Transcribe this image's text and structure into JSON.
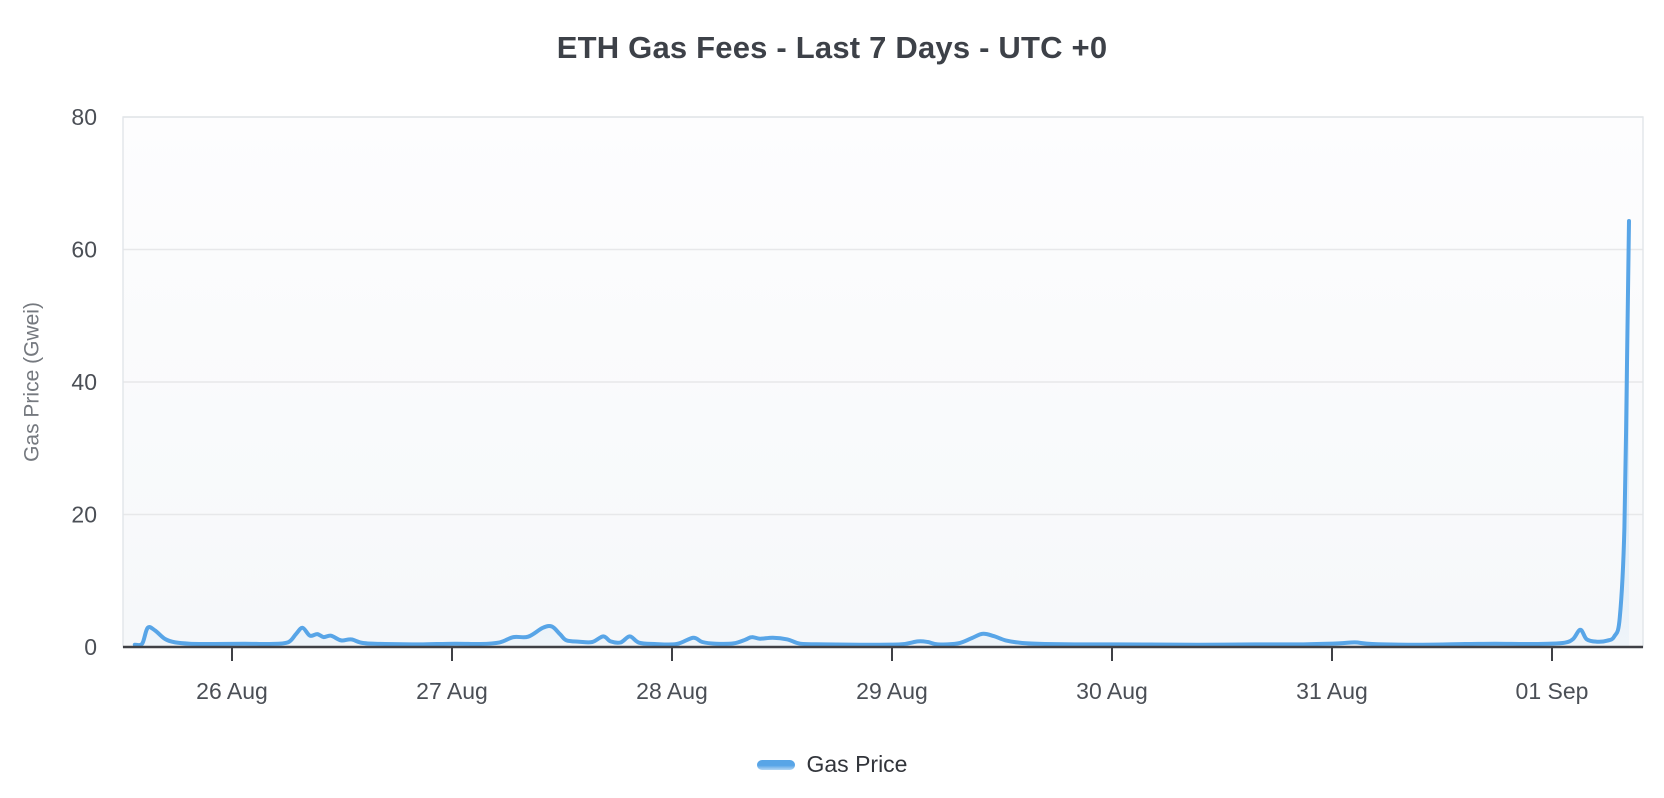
{
  "header": {
    "title": "ETH Gas Fees - Last 7 Days - UTC +0"
  },
  "legend": {
    "items": [
      {
        "label": "Gas Price",
        "color": "#58a5e7"
      }
    ]
  },
  "colors": {
    "line": "#58a5e7",
    "area_top": "rgba(88,165,231,0.18)",
    "area_mid": "rgba(88,165,231,0.10)",
    "area_bottom": "rgba(140,190,235,0.07)",
    "grid": "#e7e8ea",
    "plot_border": "#e2e5e9",
    "axis_line": "#3f4045",
    "tick_label": "#4b4f56",
    "y_axis_title": "#75797f",
    "plot_bg_top": "#fdfdfe",
    "plot_bg_bottom": "#f6f8fa"
  },
  "chart_data": {
    "type": "line",
    "title": "ETH Gas Fees - Last 7 Days - UTC +0",
    "xlabel": "",
    "ylabel": "Gas Price (Gwei)",
    "x_unit": "hours since 26 Aug 00:00 (UTC+0)",
    "ylim": [
      0,
      80
    ],
    "yticks": [
      0,
      20,
      40,
      60,
      80
    ],
    "grid": "horizontal",
    "legend_position": "bottom",
    "xticks": [
      {
        "label": "26 Aug",
        "offset_hours": 0
      },
      {
        "label": "27 Aug",
        "offset_hours": 24
      },
      {
        "label": "28 Aug",
        "offset_hours": 48
      },
      {
        "label": "29 Aug",
        "offset_hours": 72
      },
      {
        "label": "30 Aug",
        "offset_hours": 96
      },
      {
        "label": "31 Aug",
        "offset_hours": 120
      },
      {
        "label": "01 Sep",
        "offset_hours": 144
      }
    ],
    "series": [
      {
        "name": "Gas Price",
        "color": "#58a5e7",
        "points": [
          [
            -10.6,
            0.35
          ],
          [
            -9.8,
            0.5
          ],
          [
            -9.2,
            2.9
          ],
          [
            -8.4,
            2.5
          ],
          [
            -7.3,
            1.2
          ],
          [
            -6.2,
            0.7
          ],
          [
            -4.6,
            0.5
          ],
          [
            -1.9,
            0.45
          ],
          [
            1.4,
            0.5
          ],
          [
            4.1,
            0.45
          ],
          [
            6.1,
            0.7
          ],
          [
            7.0,
            2.0
          ],
          [
            7.7,
            2.9
          ],
          [
            8.5,
            1.7
          ],
          [
            9.3,
            1.95
          ],
          [
            10.0,
            1.5
          ],
          [
            10.8,
            1.7
          ],
          [
            11.9,
            1.0
          ],
          [
            13.0,
            1.15
          ],
          [
            14.3,
            0.6
          ],
          [
            16.7,
            0.45
          ],
          [
            20.5,
            0.4
          ],
          [
            24.3,
            0.5
          ],
          [
            27.1,
            0.45
          ],
          [
            29.2,
            0.7
          ],
          [
            30.7,
            1.5
          ],
          [
            32.3,
            1.55
          ],
          [
            33.9,
            2.9
          ],
          [
            34.9,
            3.1
          ],
          [
            35.8,
            1.9
          ],
          [
            36.5,
            1.0
          ],
          [
            37.9,
            0.8
          ],
          [
            39.3,
            0.75
          ],
          [
            40.5,
            1.6
          ],
          [
            41.3,
            0.85
          ],
          [
            42.4,
            0.7
          ],
          [
            43.4,
            1.6
          ],
          [
            44.4,
            0.65
          ],
          [
            46.1,
            0.45
          ],
          [
            48.5,
            0.45
          ],
          [
            50.3,
            1.4
          ],
          [
            51.3,
            0.75
          ],
          [
            52.8,
            0.5
          ],
          [
            54.7,
            0.55
          ],
          [
            56.0,
            1.1
          ],
          [
            56.7,
            1.5
          ],
          [
            57.6,
            1.25
          ],
          [
            59.0,
            1.4
          ],
          [
            60.6,
            1.15
          ],
          [
            62.0,
            0.5
          ],
          [
            64.7,
            0.4
          ],
          [
            68.5,
            0.35
          ],
          [
            72.9,
            0.4
          ],
          [
            74.8,
            0.85
          ],
          [
            75.9,
            0.75
          ],
          [
            77.0,
            0.4
          ],
          [
            79.2,
            0.55
          ],
          [
            80.7,
            1.35
          ],
          [
            81.9,
            2.0
          ],
          [
            83.1,
            1.65
          ],
          [
            84.4,
            1.0
          ],
          [
            86.2,
            0.6
          ],
          [
            88.7,
            0.45
          ],
          [
            91.9,
            0.4
          ],
          [
            95.8,
            0.4
          ],
          [
            100.1,
            0.38
          ],
          [
            105.6,
            0.35
          ],
          [
            111.6,
            0.4
          ],
          [
            116.5,
            0.4
          ],
          [
            120.7,
            0.55
          ],
          [
            122.5,
            0.7
          ],
          [
            124.4,
            0.45
          ],
          [
            129.6,
            0.35
          ],
          [
            134.5,
            0.45
          ],
          [
            137.8,
            0.5
          ],
          [
            141.1,
            0.45
          ],
          [
            143.6,
            0.5
          ],
          [
            145.4,
            0.65
          ],
          [
            146.3,
            1.2
          ],
          [
            147.1,
            2.6
          ],
          [
            147.8,
            1.15
          ],
          [
            148.9,
            0.8
          ],
          [
            150.0,
            0.95
          ],
          [
            150.8,
            1.6
          ],
          [
            151.4,
            4.5
          ],
          [
            151.9,
            18
          ],
          [
            152.2,
            45
          ],
          [
            152.4,
            64.3
          ]
        ]
      }
    ]
  }
}
